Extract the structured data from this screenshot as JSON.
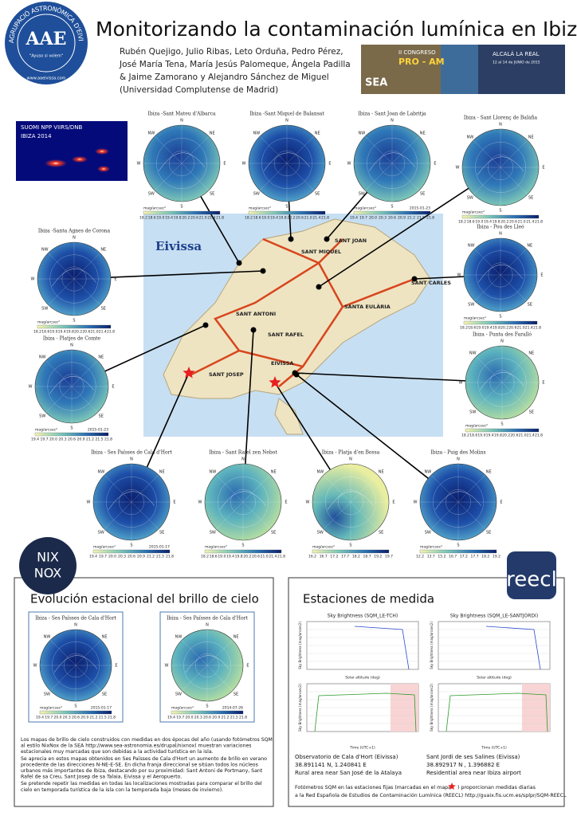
{
  "header": {
    "title": "Monitorizando la contaminación lumínica en Ibiza",
    "authors": [
      "Rubén Quejigo, Julio Ribas, Leto Orduña, Pedro Pérez,",
      "José María Tena, María Jesús Palomeque, Ángela Padilla",
      "& Jaime Zamorano y Alejandro Sánchez de Miguel"
    ],
    "affiliation": "(Universidad Complutense de Madrid)",
    "logo": "AAE",
    "logo_ring": "AGRUPACIÓ ASTRONÒMICA D'EIVISSA",
    "logo_motto": "\"Ayuso si volem\"",
    "logo_url": "www.aaeivissa.com",
    "congress": [
      "II CONGRESO",
      "PRO - AM",
      "ALCALÁ LA REAL",
      "12 al 14 de JUNIO de 2015",
      "SEA"
    ]
  },
  "satellite": {
    "title": "SUOMI NPP VIIRS/DNB",
    "subtitle": "IBIZA 2014"
  },
  "map": {
    "title": "Eivissa",
    "towns": [
      "SANT JOAN",
      "SANT ANTONI",
      "SANTA EULÀRIA",
      "EIVISSA",
      "SANT JOSEP",
      "SANT MIQUEL",
      "SANT CARLES",
      "SANT RAFEL"
    ]
  },
  "compass": [
    "N",
    "NE",
    "E",
    "SE",
    "S",
    "SW",
    "W",
    "NW"
  ],
  "unit": "mag/arcsec²",
  "panels": [
    {
      "title": "Ibiza -Sant Mateu d'Albarca",
      "scale": [
        "18.2",
        "18.6",
        "19.0",
        "19.4",
        "19.8",
        "20.2",
        "20.6",
        "21.0",
        "21.4",
        "21.8"
      ]
    },
    {
      "title": "Ibiza -Sant Miquel de Balansat",
      "scale": [
        "18.2",
        "18.6",
        "19.0",
        "19.4",
        "19.8",
        "20.2",
        "20.6",
        "21.0",
        "21.4",
        "21.8"
      ]
    },
    {
      "title": "Ibiza - Sant Joan de Labritja",
      "date": "2015-01-23",
      "scale": [
        "19.4",
        "19.7",
        "20.0",
        "20.3",
        "20.6",
        "20.9",
        "21.2",
        "21.5",
        "21.8"
      ]
    },
    {
      "title": "Ibiza - Sant Llorenç de Balàfia",
      "scale": [
        "18.2",
        "18.6",
        "19.0",
        "19.4",
        "19.8",
        "20.2",
        "20.6",
        "21.0",
        "21.4",
        "21.8"
      ]
    },
    {
      "title": "Ibiza -Santa Agnes de Corona",
      "scale": [
        "18.2",
        "18.6",
        "19.0",
        "19.4",
        "19.8",
        "20.2",
        "20.6",
        "21.0",
        "21.4",
        "21.8"
      ]
    },
    {
      "title": "Ibiza - Pou des Lleó",
      "scale": [
        "18.2",
        "18.6",
        "19.0",
        "19.4",
        "19.8",
        "20.2",
        "20.6",
        "21.0",
        "21.4",
        "21.8"
      ]
    },
    {
      "title": "Ibiza - Platjes de Comte",
      "date": "2015-01-23",
      "scale": [
        "19.4",
        "19.7",
        "20.0",
        "20.3",
        "20.6",
        "20.9",
        "21.2",
        "21.5",
        "21.8"
      ]
    },
    {
      "title": "Ibiza - Punta des Faralló",
      "scale": [
        "18.2",
        "18.6",
        "19.0",
        "19.4",
        "19.8",
        "20.2",
        "20.6",
        "21.0",
        "21.4",
        "21.8"
      ]
    },
    {
      "title": "Ibiza - Ses Païsses de Cala d'Hort",
      "date": "2015-01-17",
      "scale": [
        "19.4",
        "19.7",
        "20.0",
        "20.3",
        "20.6",
        "20.9",
        "21.2",
        "21.5",
        "21.8"
      ]
    },
    {
      "title": "Ibiza - Sant Rafel zen Nebot",
      "scale": [
        "18.2",
        "18.6",
        "19.0",
        "19.4",
        "19.8",
        "20.2",
        "20.6",
        "21.0",
        "21.4",
        "21.8"
      ]
    },
    {
      "title": "Ibiza - Platja d'en Bossa",
      "scale": [
        "16.2",
        "16.7",
        "17.2",
        "17.7",
        "18.2",
        "18.7",
        "19.2",
        "19.7"
      ]
    },
    {
      "title": "Ibiza - Puig des Molins",
      "scale": [
        "12.2",
        "13.7",
        "15.2",
        "16.7",
        "17.2",
        "17.7",
        "18.2",
        "19.2"
      ]
    }
  ],
  "seasonal": {
    "title": "Evolución estacional del brillo de cielo",
    "panels": [
      {
        "title": "Ibiza - Ses Païsses de Cala d'Hort",
        "date": "2015-01-17",
        "scale": [
          "19.4",
          "19.7",
          "20.0",
          "20.3",
          "20.6",
          "20.9",
          "21.2",
          "21.5",
          "21.8"
        ]
      },
      {
        "title": "Ibiza - Ses Païsses de Cala d'Hort",
        "date": "2014-07-26",
        "scale": [
          "19.4",
          "19.7",
          "20.0",
          "20.3",
          "20.6",
          "20.9",
          "21.2",
          "21.5",
          "21.8"
        ]
      }
    ],
    "paragraphs": [
      "Los mapas de brillo de cielo construidos con medidas en dos épocas del año (usando fotómetros SQM al estilo NixNox de la SEA http://www.sea-astronomia.es/drupal/nixnox) muestran variaciones estacionales muy marcadas que son debidas a la actividad turística en la isla.",
      "Se aprecia en estos mapas obtenidos en Ses Païsses de Cala d'Hort un aumento de brillo en verano procedente de las direcciones N-NE-E-SE. En dicha franja direccional se sitúan todos los núcleos urbanos más importantes de Ibiza, destacando por su proximidad: Sant Antoni de Portmany, Sant Rafel de sa Creu, Sant Josep de sa Talaia, Eivissa y el Aeropuerto.",
      "Se pretende repetir las medidas en todas las localizaciones mostradas para comparar el brillo del cielo en temporada turística de la isla con la temporada baja (meses de invierno)."
    ],
    "logo": [
      "NIX",
      "NOX"
    ]
  },
  "stations": {
    "title": "Estaciones de medida",
    "logo": "reecl",
    "items": [
      {
        "plot": "Sky Brightness (SQM_LE-TCH)",
        "name": "Observatorio de Cala d'Hort (Eivissa)",
        "coords": "38.891141 N, 1.240841 E",
        "area": "Rural area near San José de la Atalaya"
      },
      {
        "plot": "Sky Brightness (SQM_LE-SANTJORDI)",
        "name": "Sant Jordi de ses Salines (Eivissa)",
        "coords": "38.892917 N , 1.396882 E",
        "area": "Residential area near Ibiza airport"
      }
    ],
    "yaxis": "Sky Brightness (mag/arcsec2)",
    "xaxis_top": "Solar altitude (deg)",
    "xaxis_bottom": "Time (UTC+1)",
    "footer": [
      "Fotómetros SQM en las estaciones fijas (marcadas en el mapa",
      ") proporcionan medidas diarias",
      "a la Red Española de Estudios de Contaminación Lumínica (REECL) http://guaix.fis.ucm.es/splpr/SQM-REECL"
    ]
  }
}
